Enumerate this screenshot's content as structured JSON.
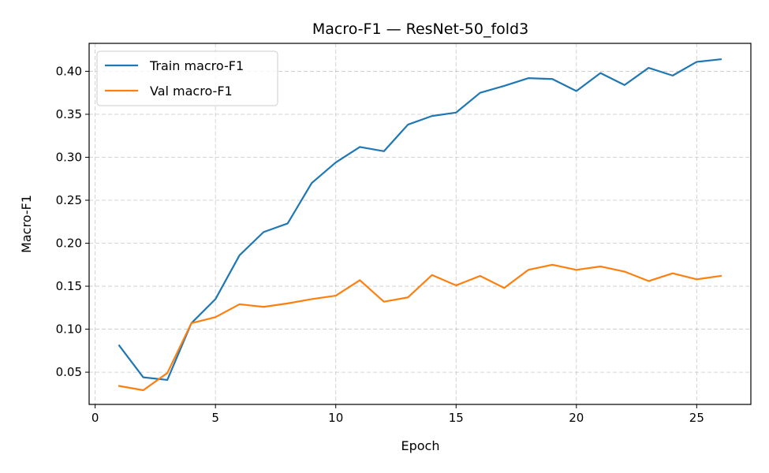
{
  "chart_data": {
    "type": "line",
    "title": "Macro-F1 — ResNet-50_fold3",
    "xlabel": "Epoch",
    "ylabel": "Macro-F1",
    "x": [
      1,
      2,
      3,
      4,
      5,
      6,
      7,
      8,
      9,
      10,
      11,
      12,
      13,
      14,
      15,
      16,
      17,
      18,
      19,
      20,
      21,
      22,
      23,
      24,
      25,
      26
    ],
    "xlim": [
      -0.25,
      27.25
    ],
    "ylim": [
      0.0125,
      0.4325
    ],
    "xticks": [
      0,
      5,
      10,
      15,
      20,
      25
    ],
    "xtick_labels": [
      "0",
      "5",
      "10",
      "15",
      "20",
      "25"
    ],
    "yticks": [
      0.05,
      0.1,
      0.15,
      0.2,
      0.25,
      0.3,
      0.35,
      0.4
    ],
    "ytick_labels": [
      "0.05",
      "0.10",
      "0.15",
      "0.20",
      "0.25",
      "0.30",
      "0.35",
      "0.40"
    ],
    "grid": true,
    "legend_position": "top-left",
    "series": [
      {
        "name": "Train macro-F1",
        "color": "#1f77b4",
        "values": [
          0.081,
          0.044,
          0.041,
          0.107,
          0.135,
          0.186,
          0.213,
          0.223,
          0.27,
          0.294,
          0.312,
          0.307,
          0.338,
          0.348,
          0.352,
          0.375,
          0.383,
          0.392,
          0.391,
          0.377,
          0.398,
          0.384,
          0.404,
          0.395,
          0.411,
          0.414
        ]
      },
      {
        "name": "Val macro-F1",
        "color": "#ff7f0e",
        "values": [
          0.034,
          0.029,
          0.049,
          0.107,
          0.114,
          0.129,
          0.126,
          0.13,
          0.135,
          0.139,
          0.157,
          0.132,
          0.137,
          0.163,
          0.151,
          0.162,
          0.148,
          0.169,
          0.175,
          0.169,
          0.173,
          0.167,
          0.156,
          0.165,
          0.158,
          0.162
        ]
      }
    ]
  }
}
